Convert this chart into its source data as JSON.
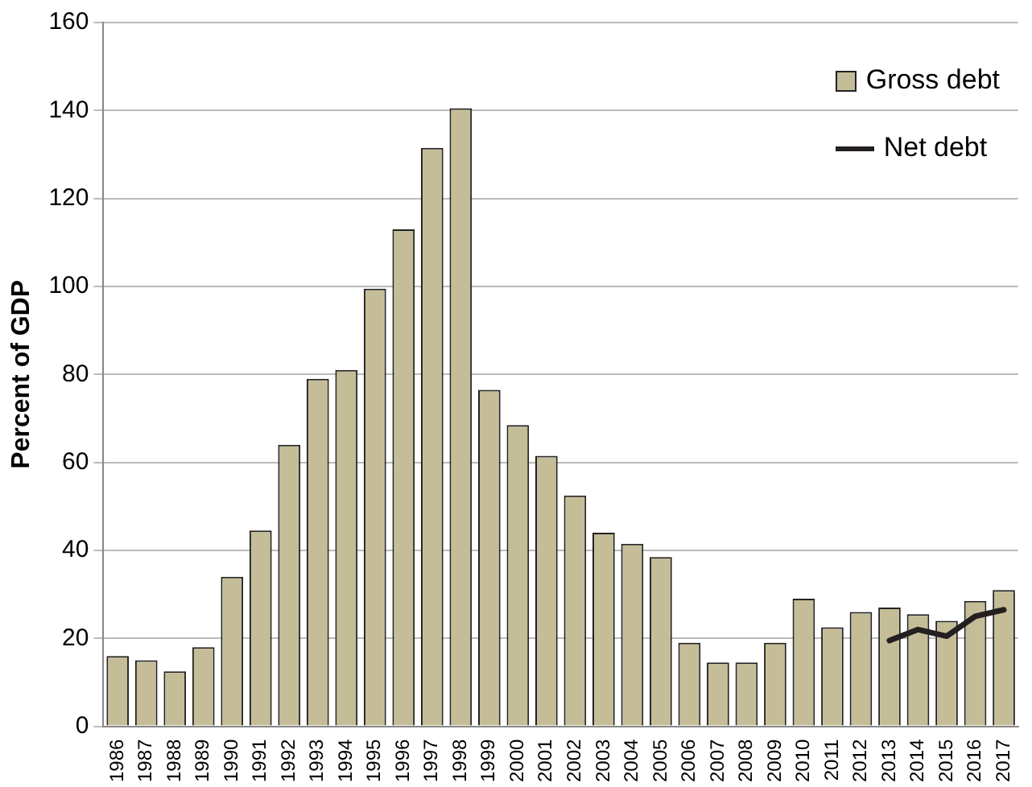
{
  "chart_data": {
    "type": "bar",
    "ylabel": "Percent of GDP",
    "categories": [
      "1986",
      "1987",
      "1988",
      "1989",
      "1990",
      "1991",
      "1992",
      "1993",
      "1994",
      "1995",
      "1996",
      "1997",
      "1998",
      "1999",
      "2000",
      "2001",
      "2002",
      "2003",
      "2004",
      "2005",
      "2006",
      "2007",
      "2008",
      "2009",
      "2010",
      "2011",
      "2012",
      "2013",
      "2014",
      "2015",
      "2016",
      "2017"
    ],
    "series": [
      {
        "name": "Gross debt",
        "color": "#c4bd97",
        "values": [
          16,
          15,
          12.5,
          18,
          34,
          44.5,
          64,
          79,
          81,
          99.5,
          113,
          131.5,
          140.5,
          76.5,
          68.5,
          61.5,
          52.5,
          44,
          41.5,
          38.5,
          19,
          14.5,
          14.5,
          19,
          29,
          22.5,
          26,
          27,
          25.5,
          24,
          28.5,
          31
        ]
      },
      {
        "name": "Net debt",
        "type": "line",
        "color": "#231f20",
        "values": [
          null,
          null,
          null,
          null,
          null,
          null,
          null,
          null,
          null,
          null,
          null,
          null,
          null,
          null,
          null,
          null,
          null,
          null,
          null,
          null,
          null,
          null,
          null,
          null,
          null,
          null,
          null,
          19.5,
          22,
          20.5,
          25,
          26.5
        ]
      }
    ],
    "ylim": [
      0,
      160
    ],
    "yticks": [
      0,
      20,
      40,
      60,
      80,
      100,
      120,
      140,
      160
    ],
    "grid": "y",
    "legend": "top right",
    "marker": "none",
    "line_style": "solid"
  }
}
